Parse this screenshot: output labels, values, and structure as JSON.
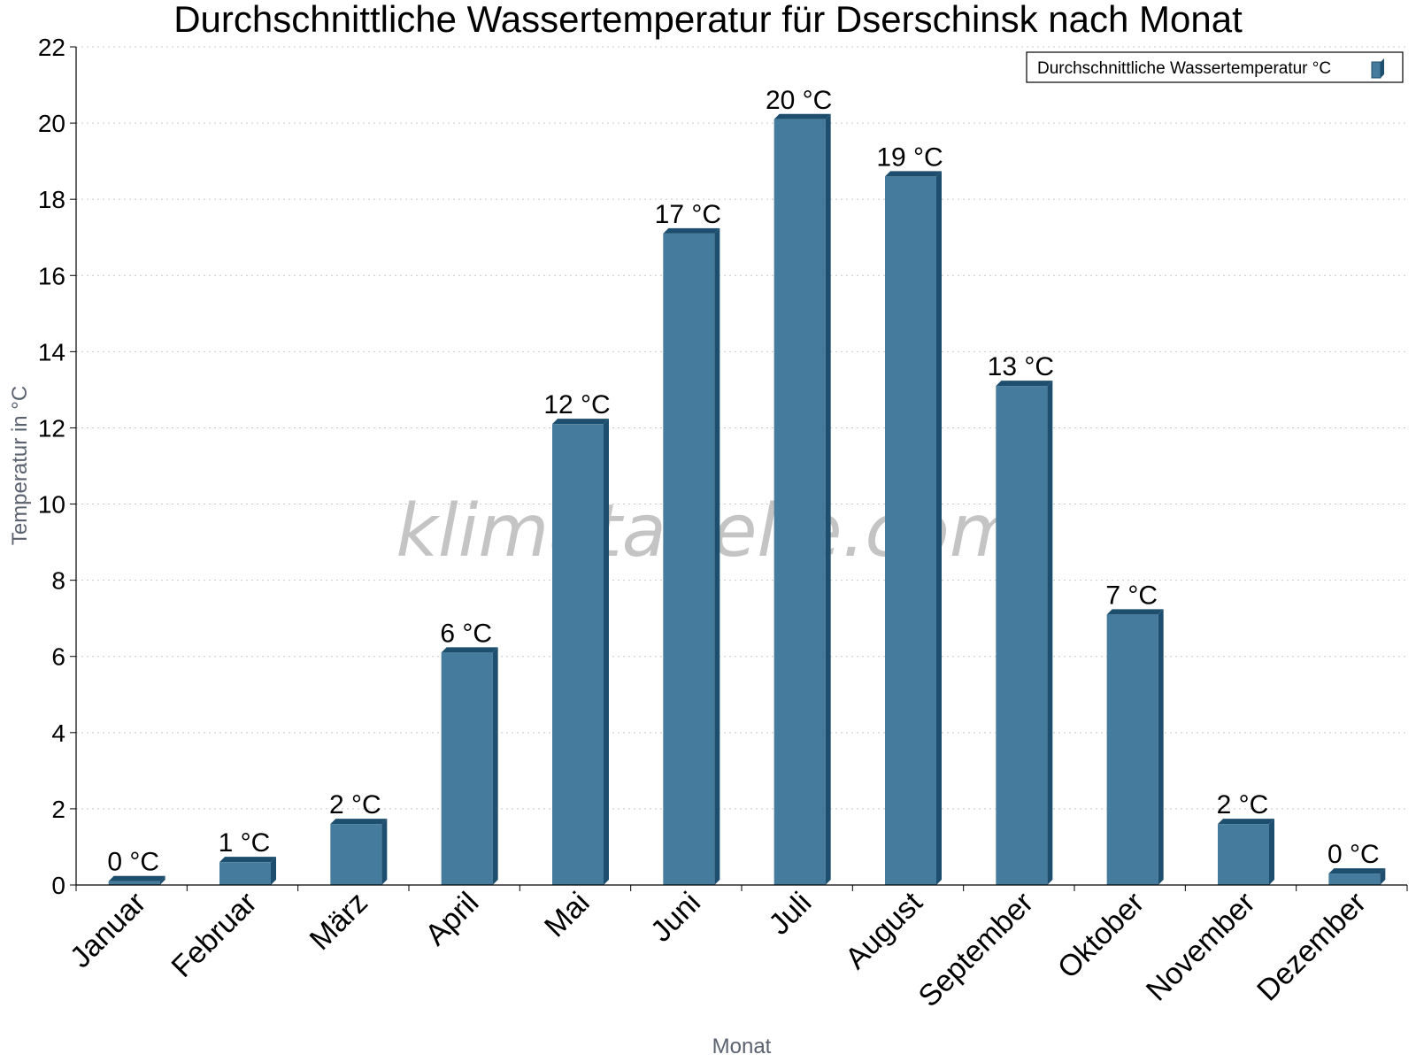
{
  "chart_data": {
    "type": "bar",
    "title": "Durchschnittliche Wassertemperatur für Dserschinsk nach Monat",
    "xlabel": "Monat",
    "ylabel": "Temperatur in °C",
    "categories": [
      "Januar",
      "Februar",
      "März",
      "April",
      "Mai",
      "Juni",
      "Juli",
      "August",
      "September",
      "Oktober",
      "November",
      "Dezember"
    ],
    "series": [
      {
        "name": "Durchschnittliche Wassertemperatur °C",
        "values": [
          0.1,
          0.6,
          1.6,
          6.1,
          12.1,
          17.1,
          20.1,
          18.6,
          13.1,
          7.1,
          1.6,
          0.3
        ],
        "data_labels": [
          "0 °C",
          "1 °C",
          "2 °C",
          "6 °C",
          "12 °C",
          "17 °C",
          "20 °C",
          "19 °C",
          "13 °C",
          "7 °C",
          "2 °C",
          "0 °C"
        ]
      }
    ],
    "ylim": [
      0,
      22
    ],
    "yticks": [
      "0",
      "2",
      "4",
      "6",
      "8",
      "10",
      "12",
      "14",
      "16",
      "18",
      "20",
      "22"
    ],
    "grid": "horizontal dotted",
    "legend_position": "top-right",
    "watermark": "klimatabelle.com",
    "colors": {
      "bar": "#457b9d",
      "bar_side": "#1d4e6e",
      "bar_top": "#1d4e6e",
      "grid": "#c8c8c8",
      "axis_title": "#5a6270"
    }
  }
}
